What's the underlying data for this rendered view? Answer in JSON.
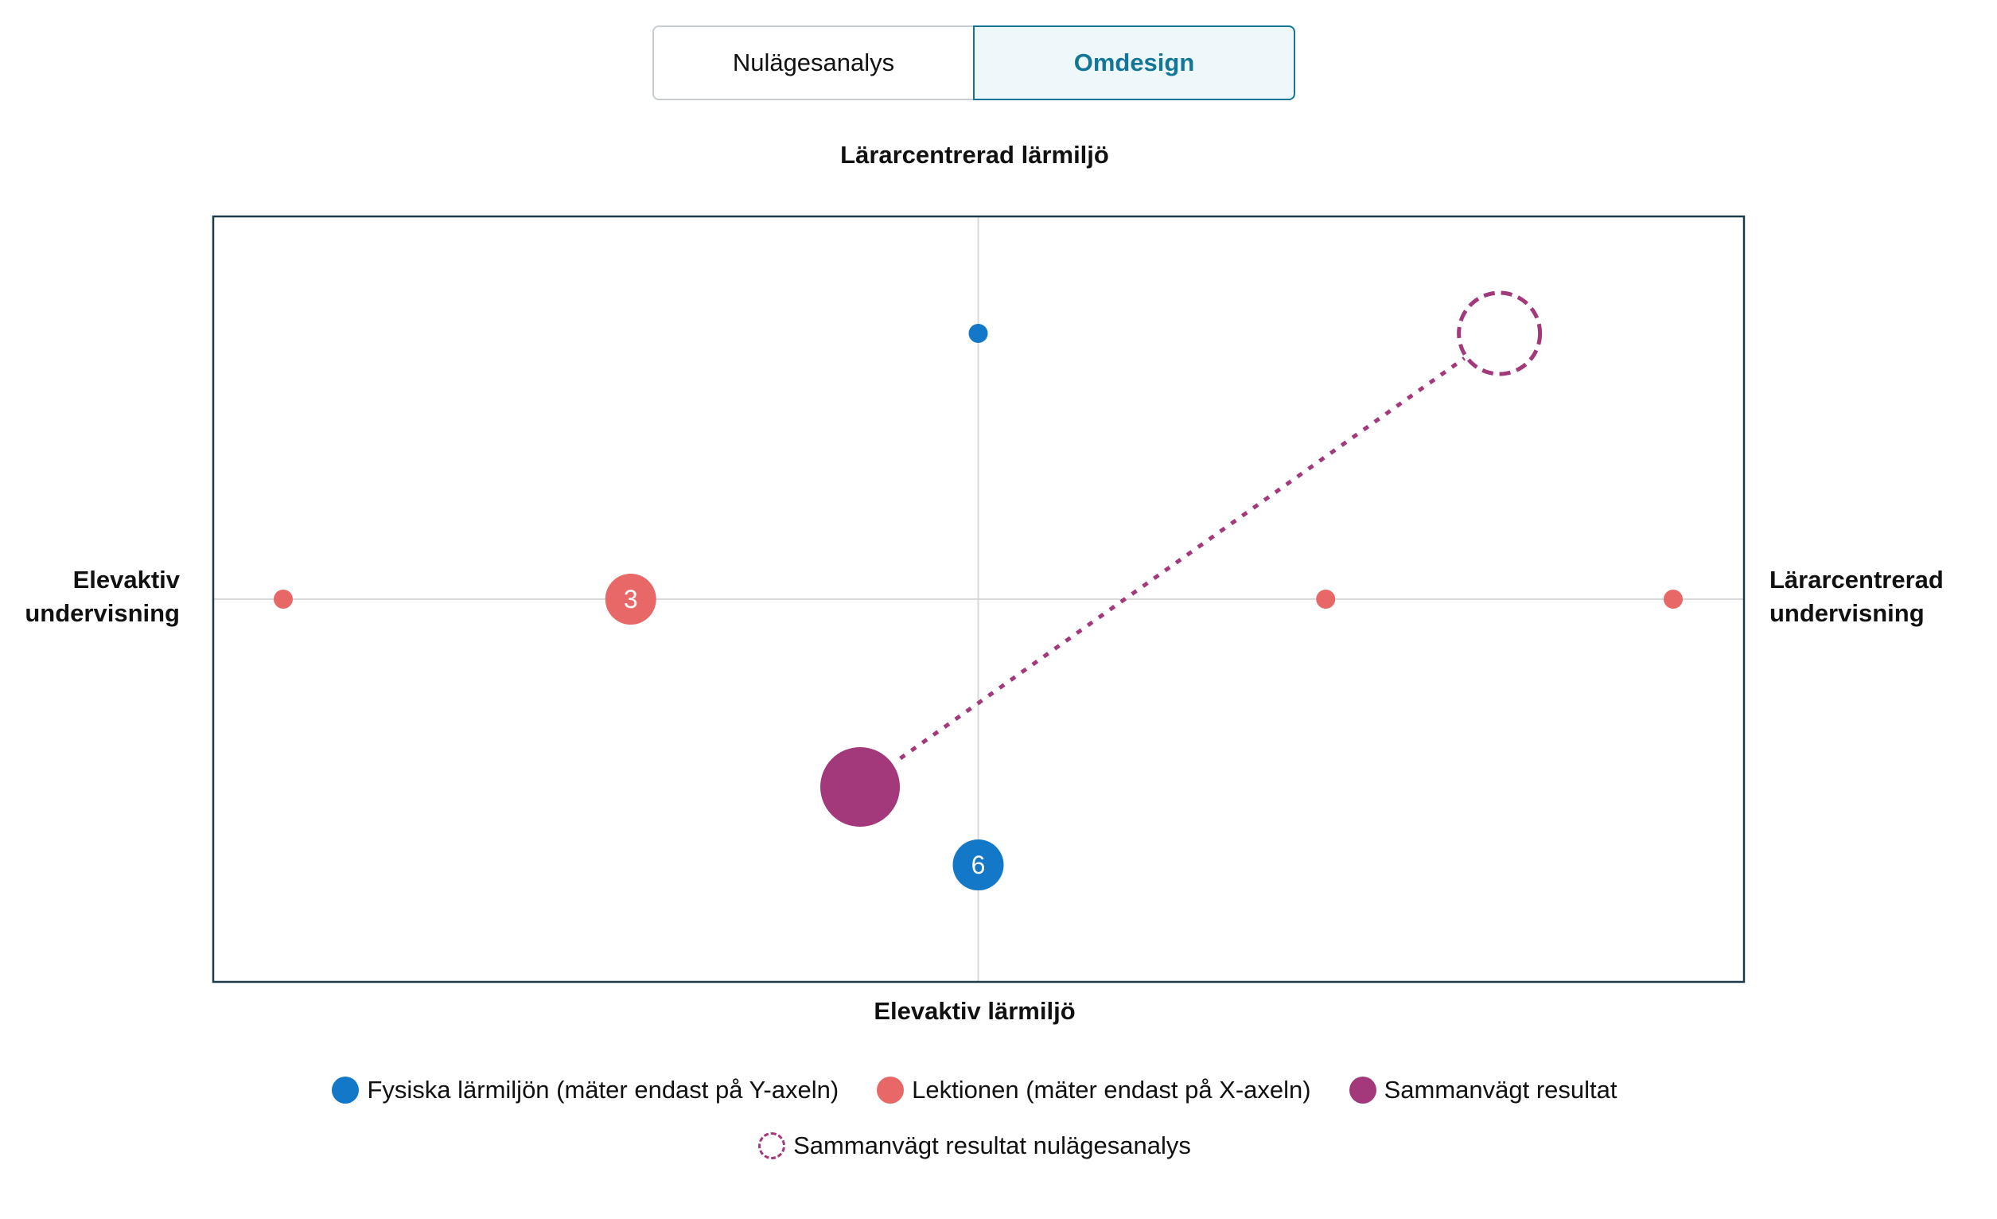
{
  "tabs": {
    "left_label": "Nulägesanalys",
    "right_label": "Omdesign",
    "active": "Omdesign",
    "active_color": "#137699"
  },
  "colors": {
    "fysiska": "#1478c8",
    "lektionen": "#e86868",
    "sammanvagt": "#a3387a",
    "frame": "#1e3a4a",
    "grid": "#d9d9d9"
  },
  "chart_data": {
    "type": "scatter",
    "title": "",
    "axis_labels": {
      "top": "Lärarcentrerad lärmiljö",
      "bottom": "Elevaktiv lärmiljö",
      "left_line1": "Elevaktiv",
      "left_line2": "undervisning",
      "right_line1": "Lärarcentrerad",
      "right_line2": "undervisning"
    },
    "xlim": [
      -2,
      2
    ],
    "ylim": [
      -2,
      2
    ],
    "series": [
      {
        "name": "Fysiska lärmiljön (mäter endast på Y-axeln)",
        "color": "#1478c8",
        "points": [
          {
            "x": 0,
            "y": 1.67,
            "count": 1
          },
          {
            "x": 0,
            "y": -1.67,
            "count": 6,
            "label": "6"
          }
        ]
      },
      {
        "name": "Lektionen (mäter endast på X-axeln)",
        "color": "#e86868",
        "points": [
          {
            "x": -2,
            "y": 0,
            "count": 1
          },
          {
            "x": -1,
            "y": 0,
            "count": 3,
            "label": "3"
          },
          {
            "x": 1,
            "y": 0,
            "count": 1
          },
          {
            "x": 2,
            "y": 0,
            "count": 1
          }
        ]
      },
      {
        "name": "Sammanvägt resultat",
        "color": "#a3387a",
        "points": [
          {
            "x": -0.34,
            "y": -1.18
          }
        ]
      },
      {
        "name": "Sammanvägt resultat nulägesanalys",
        "color": "#a3387a",
        "style": "dashed-outline",
        "points": [
          {
            "x": 1.5,
            "y": 1.67
          }
        ]
      }
    ],
    "connector": {
      "from": [
        -0.34,
        -1.18
      ],
      "to": [
        1.5,
        1.67
      ],
      "style": "dotted"
    }
  },
  "legend": {
    "fysiska": "Fysiska lärmiljön (mäter endast på Y-axeln)",
    "lektionen": "Lektionen (mäter endast på X-axeln)",
    "sammanvagt": "Sammanvägt resultat",
    "nulage": "Sammanvägt resultat nulägesanalys"
  }
}
